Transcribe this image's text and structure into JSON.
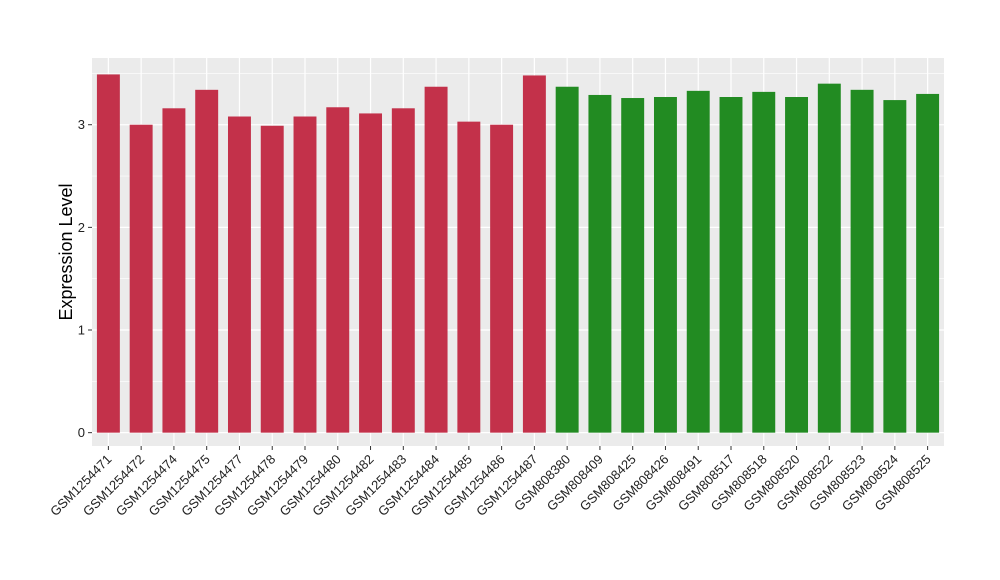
{
  "chart_data": {
    "type": "bar",
    "title": "",
    "xlabel": "",
    "ylabel": "Expression Level",
    "ylim": [
      -0.13,
      3.65
    ],
    "yticks": [
      0,
      1,
      2,
      3
    ],
    "grid": true,
    "legend": "none",
    "panel_background": "#ebebeb",
    "gridline_color": "#ffffff",
    "categories": [
      "GSM1254471",
      "GSM1254472",
      "GSM1254474",
      "GSM1254475",
      "GSM1254477",
      "GSM1254478",
      "GSM1254479",
      "GSM1254480",
      "GSM1254482",
      "GSM1254483",
      "GSM1254484",
      "GSM1254485",
      "GSM1254486",
      "GSM1254487",
      "GSM808380",
      "GSM808409",
      "GSM808425",
      "GSM808426",
      "GSM808491",
      "GSM808517",
      "GSM808518",
      "GSM808520",
      "GSM808522",
      "GSM808523",
      "GSM808524",
      "GSM808525"
    ],
    "values": [
      3.49,
      3.0,
      3.16,
      3.34,
      3.08,
      2.99,
      3.08,
      3.17,
      3.11,
      3.16,
      3.37,
      3.03,
      3.0,
      3.48,
      3.37,
      3.29,
      3.26,
      3.27,
      3.33,
      3.27,
      3.32,
      3.27,
      3.4,
      3.34,
      3.24,
      3.3
    ],
    "colors": [
      "#c3314a",
      "#c3314a",
      "#c3314a",
      "#c3314a",
      "#c3314a",
      "#c3314a",
      "#c3314a",
      "#c3314a",
      "#c3314a",
      "#c3314a",
      "#c3314a",
      "#c3314a",
      "#c3314a",
      "#c3314a",
      "#228b22",
      "#228b22",
      "#228b22",
      "#228b22",
      "#228b22",
      "#228b22",
      "#228b22",
      "#228b22",
      "#228b22",
      "#228b22",
      "#228b22",
      "#228b22"
    ]
  }
}
